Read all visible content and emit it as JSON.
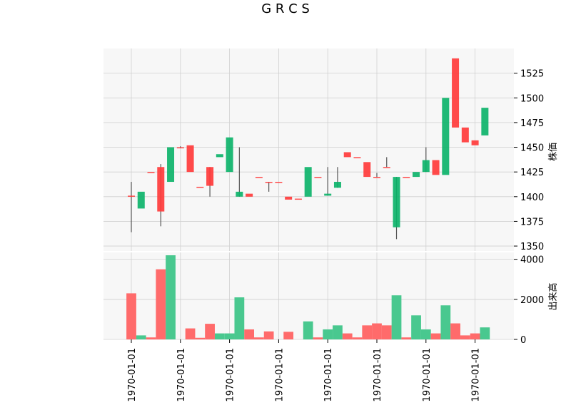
{
  "chart_data": {
    "type": "candlestick",
    "title": "G R C S",
    "price_axis": {
      "ylabel": "株価",
      "ylim": [
        1345,
        1550
      ],
      "ticks": [
        1350,
        1375,
        1400,
        1425,
        1450,
        1475,
        1500,
        1525
      ]
    },
    "volume_axis": {
      "ylabel": "出来高",
      "ylim": [
        0,
        4200
      ],
      "ticks": [
        0,
        2000,
        4000
      ]
    },
    "x_tick_labels": [
      "1970-01-01",
      "1970-01-01",
      "1970-01-01",
      "1970-01-01",
      "1970-01-01",
      "1970-01-01",
      "1970-01-01",
      "1970-01-01"
    ],
    "colors": {
      "up": "#0db36a",
      "down": "#ff3b3b",
      "up_volume": "#49c88f",
      "down_volume": "#ff6b6b",
      "wick": "#555555",
      "grid": "#d0d0d0",
      "background": "#f7f7f7"
    },
    "grid": true,
    "candles": [
      {
        "open": 1401,
        "high": 1415,
        "low": 1364,
        "close": 1400,
        "volume": 2300
      },
      {
        "open": 1388,
        "high": 1405,
        "low": 1388,
        "close": 1405,
        "volume": 200
      },
      {
        "open": 1425,
        "high": 1425,
        "low": 1425,
        "close": 1424,
        "volume": 100
      },
      {
        "open": 1430,
        "high": 1433,
        "low": 1370,
        "close": 1385,
        "volume": 3500
      },
      {
        "open": 1415,
        "high": 1450,
        "low": 1415,
        "close": 1450,
        "volume": 4200
      },
      {
        "open": 1450,
        "high": 1451,
        "low": 1449,
        "close": 1449,
        "volume": 0
      },
      {
        "open": 1452,
        "high": 1452,
        "low": 1425,
        "close": 1425,
        "volume": 550
      },
      {
        "open": 1410,
        "high": 1410,
        "low": 1410,
        "close": 1409,
        "volume": 80
      },
      {
        "open": 1430,
        "high": 1430,
        "low": 1400,
        "close": 1411,
        "volume": 780
      },
      {
        "open": 1440,
        "high": 1443,
        "low": 1440,
        "close": 1443,
        "volume": 300
      },
      {
        "open": 1425,
        "high": 1460,
        "low": 1425,
        "close": 1460,
        "volume": 300
      },
      {
        "open": 1400,
        "high": 1450,
        "low": 1400,
        "close": 1405,
        "volume": 2100
      },
      {
        "open": 1403,
        "high": 1403,
        "low": 1400,
        "close": 1400,
        "volume": 500
      },
      {
        "open": 1420,
        "high": 1420,
        "low": 1420,
        "close": 1419,
        "volume": 100
      },
      {
        "open": 1415,
        "high": 1415,
        "low": 1405,
        "close": 1414,
        "volume": 400
      },
      {
        "open": 1415,
        "high": 1415,
        "low": 1415,
        "close": 1414,
        "volume": 0
      },
      {
        "open": 1400,
        "high": 1400,
        "low": 1397,
        "close": 1397,
        "volume": 380
      },
      {
        "open": 1398,
        "high": 1398,
        "low": 1398,
        "close": 1397,
        "volume": 0
      },
      {
        "open": 1400,
        "high": 1430,
        "low": 1400,
        "close": 1430,
        "volume": 900
      },
      {
        "open": 1420,
        "high": 1420,
        "low": 1420,
        "close": 1419,
        "volume": 100
      },
      {
        "open": 1401,
        "high": 1430,
        "low": 1401,
        "close": 1403,
        "volume": 500
      },
      {
        "open": 1409,
        "high": 1430,
        "low": 1409,
        "close": 1415,
        "volume": 700
      },
      {
        "open": 1445,
        "high": 1445,
        "low": 1440,
        "close": 1440,
        "volume": 300
      },
      {
        "open": 1440,
        "high": 1440,
        "low": 1440,
        "close": 1439,
        "volume": 100
      },
      {
        "open": 1435,
        "high": 1435,
        "low": 1420,
        "close": 1420,
        "volume": 700
      },
      {
        "open": 1420,
        "high": 1424,
        "low": 1420,
        "close": 1419,
        "volume": 800
      },
      {
        "open": 1430,
        "high": 1440,
        "low": 1430,
        "close": 1429,
        "volume": 700
      },
      {
        "open": 1369,
        "high": 1420,
        "low": 1357,
        "close": 1420,
        "volume": 2200
      },
      {
        "open": 1420,
        "high": 1420,
        "low": 1420,
        "close": 1419,
        "volume": 100
      },
      {
        "open": 1420,
        "high": 1424,
        "low": 1420,
        "close": 1425,
        "volume": 1200
      },
      {
        "open": 1425,
        "high": 1450,
        "low": 1425,
        "close": 1437,
        "volume": 500
      },
      {
        "open": 1437,
        "high": 1437,
        "low": 1422,
        "close": 1422,
        "volume": 300
      },
      {
        "open": 1422,
        "high": 1500,
        "low": 1422,
        "close": 1500,
        "volume": 1700
      },
      {
        "open": 1540,
        "high": 1540,
        "low": 1470,
        "close": 1470,
        "volume": 800
      },
      {
        "open": 1470,
        "high": 1470,
        "low": 1455,
        "close": 1455,
        "volume": 200
      },
      {
        "open": 1457,
        "high": 1457,
        "low": 1452,
        "close": 1452,
        "volume": 300
      },
      {
        "open": 1462,
        "high": 1490,
        "low": 1462,
        "close": 1490,
        "volume": 600
      }
    ]
  }
}
